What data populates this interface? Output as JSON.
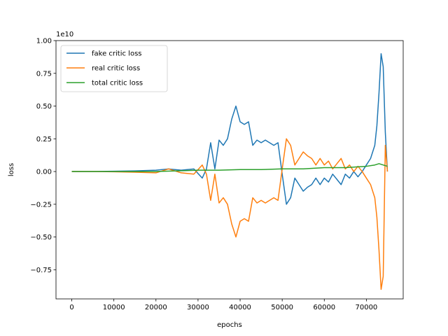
{
  "chart_data": {
    "type": "line",
    "title": "",
    "xlabel": "epochs",
    "ylabel": "loss",
    "y_scale_label": "1e10",
    "xlim": [
      -3750,
      78750
    ],
    "ylim": [
      -0.9727,
      1.0
    ],
    "x_ticks": [
      0,
      10000,
      20000,
      30000,
      40000,
      50000,
      60000,
      70000
    ],
    "x_tick_labels": [
      "0",
      "10000",
      "20000",
      "30000",
      "40000",
      "50000",
      "60000",
      "70000"
    ],
    "y_ticks": [
      1.0,
      0.75,
      0.5,
      0.25,
      0.0,
      -0.25,
      -0.5,
      -0.75
    ],
    "y_tick_labels": [
      "1.00",
      "0.75",
      "0.50",
      "0.25",
      "0.00",
      "−0.25",
      "−0.50",
      "−0.75"
    ],
    "grid": false,
    "legend_position": "top-left",
    "series": [
      {
        "name": "fake critic loss",
        "color": "#1f77b4",
        "x": [
          0,
          5000,
          10000,
          15000,
          20000,
          23000,
          26000,
          29000,
          31000,
          32000,
          33000,
          34000,
          35000,
          36000,
          37000,
          38000,
          39000,
          40000,
          41000,
          42000,
          43000,
          44000,
          45000,
          46000,
          47000,
          48000,
          49000,
          50000,
          51000,
          52000,
          53000,
          54000,
          55000,
          56000,
          57000,
          58000,
          59000,
          60000,
          61000,
          62000,
          63000,
          64000,
          65000,
          66000,
          67000,
          68000,
          69000,
          70000,
          71000,
          72000,
          72500,
          73000,
          73500,
          74000,
          74500,
          75000
        ],
        "y": [
          0.0,
          0.0,
          0.002,
          0.005,
          0.01,
          0.02,
          0.01,
          0.02,
          -0.05,
          0.02,
          0.22,
          0.02,
          0.24,
          0.2,
          0.25,
          0.4,
          0.5,
          0.38,
          0.36,
          0.38,
          0.2,
          0.24,
          0.22,
          0.24,
          0.22,
          0.2,
          0.22,
          -0.02,
          -0.25,
          -0.2,
          -0.05,
          -0.1,
          -0.15,
          -0.12,
          -0.1,
          -0.05,
          -0.1,
          -0.05,
          -0.08,
          -0.02,
          -0.06,
          -0.1,
          -0.02,
          -0.05,
          0.0,
          -0.04,
          0.0,
          0.05,
          0.1,
          0.2,
          0.35,
          0.6,
          0.9,
          0.8,
          0.3,
          0.0
        ]
      },
      {
        "name": "real critic loss",
        "color": "#ff7f0e",
        "x": [
          0,
          5000,
          10000,
          15000,
          20000,
          23000,
          26000,
          29000,
          31000,
          32000,
          33000,
          34000,
          35000,
          36000,
          37000,
          38000,
          39000,
          40000,
          41000,
          42000,
          43000,
          44000,
          45000,
          46000,
          47000,
          48000,
          49000,
          50000,
          51000,
          52000,
          53000,
          54000,
          55000,
          56000,
          57000,
          58000,
          59000,
          60000,
          61000,
          62000,
          63000,
          64000,
          65000,
          66000,
          67000,
          68000,
          69000,
          70000,
          71000,
          72000,
          72500,
          73000,
          73500,
          74000,
          74500,
          75000
        ],
        "y": [
          0.0,
          0.0,
          -0.002,
          -0.005,
          -0.01,
          0.02,
          -0.01,
          -0.02,
          0.05,
          -0.02,
          -0.22,
          -0.02,
          -0.24,
          -0.2,
          -0.25,
          -0.4,
          -0.5,
          -0.38,
          -0.36,
          -0.38,
          -0.2,
          -0.24,
          -0.22,
          -0.24,
          -0.22,
          -0.2,
          -0.22,
          0.02,
          0.25,
          0.2,
          0.05,
          0.1,
          0.15,
          0.12,
          0.1,
          0.05,
          0.1,
          0.05,
          0.08,
          0.02,
          0.06,
          0.1,
          0.02,
          0.05,
          0.0,
          0.04,
          0.0,
          -0.05,
          -0.1,
          -0.2,
          -0.35,
          -0.6,
          -0.9,
          -0.8,
          0.2,
          0.0
        ]
      },
      {
        "name": "total critic loss",
        "color": "#2ca02c",
        "x": [
          0,
          5000,
          10000,
          15000,
          20000,
          25000,
          30000,
          35000,
          40000,
          45000,
          50000,
          55000,
          60000,
          65000,
          70000,
          72000,
          73000,
          74000,
          75000
        ],
        "y": [
          0.0,
          0.0,
          0.0,
          0.0,
          0.0,
          0.005,
          0.01,
          0.01,
          0.015,
          0.015,
          0.02,
          0.02,
          0.03,
          0.03,
          0.04,
          0.05,
          0.06,
          0.05,
          0.04
        ]
      }
    ]
  }
}
